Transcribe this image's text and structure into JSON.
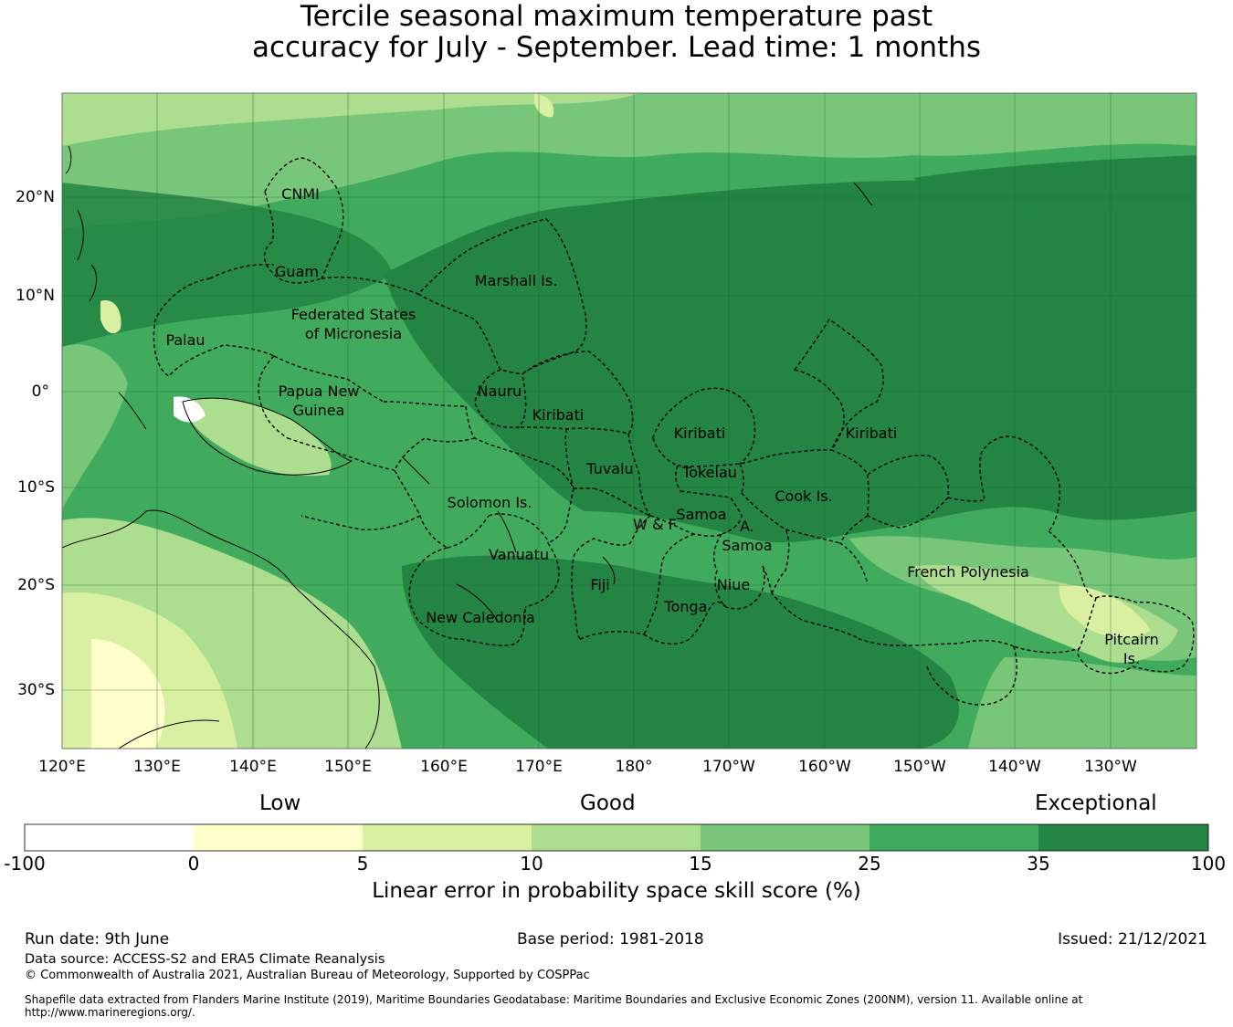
{
  "title_line1": "Tercile seasonal maximum temperature past",
  "title_line2": "accuracy for July - September. Lead time: 1 months",
  "map": {
    "lat_labels": [
      "20°N",
      "10°N",
      "0°",
      "10°S",
      "20°S",
      "30°S"
    ],
    "lon_labels": [
      "120°E",
      "130°E",
      "140°E",
      "150°E",
      "160°E",
      "170°E",
      "180°",
      "170°W",
      "160°W",
      "150°W",
      "140°W",
      "130°W"
    ],
    "regions": [
      {
        "lines": [
          "CNMI"
        ]
      },
      {
        "lines": [
          "Guam"
        ]
      },
      {
        "lines": [
          "Marshall Is."
        ]
      },
      {
        "lines": [
          "Federated States",
          "of Micronesia"
        ]
      },
      {
        "lines": [
          "Palau"
        ]
      },
      {
        "lines": [
          "Papua New",
          "Guinea"
        ]
      },
      {
        "lines": [
          "Nauru"
        ]
      },
      {
        "lines": [
          "Kiribati"
        ]
      },
      {
        "lines": [
          "Kiribati"
        ]
      },
      {
        "lines": [
          "Kiribati"
        ]
      },
      {
        "lines": [
          "Tuvalu"
        ]
      },
      {
        "lines": [
          "Tokelau"
        ]
      },
      {
        "lines": [
          "Solomon Is."
        ]
      },
      {
        "lines": [
          "Cook Is."
        ]
      },
      {
        "lines": [
          "Samoa"
        ]
      },
      {
        "lines": [
          "W & F"
        ]
      },
      {
        "lines": [
          "A."
        ]
      },
      {
        "lines": [
          "Samoa"
        ]
      },
      {
        "lines": [
          "Vanuatu"
        ]
      },
      {
        "lines": [
          "French Polynesia"
        ]
      },
      {
        "lines": [
          "Fiji"
        ]
      },
      {
        "lines": [
          "Niue"
        ]
      },
      {
        "lines": [
          "Tonga"
        ]
      },
      {
        "lines": [
          "New Caledonia"
        ]
      },
      {
        "lines": [
          "Pitcairn",
          "Is."
        ]
      }
    ]
  },
  "legend": {
    "categories": [
      "Low",
      "Good",
      "Exceptional"
    ],
    "bins": [
      {
        "from": -100,
        "to": 0,
        "color": "#ffffff"
      },
      {
        "from": 0,
        "to": 5,
        "color": "#ffffcc"
      },
      {
        "from": 5,
        "to": 10,
        "color": "#d9f0a3"
      },
      {
        "from": 10,
        "to": 15,
        "color": "#addd8e"
      },
      {
        "from": 15,
        "to": 25,
        "color": "#78c679"
      },
      {
        "from": 25,
        "to": 35,
        "color": "#41ab5d"
      },
      {
        "from": 35,
        "to": 100,
        "color": "#238443"
      }
    ],
    "ticks": [
      "-100",
      "0",
      "5",
      "10",
      "15",
      "25",
      "35",
      "100"
    ],
    "label": "Linear error in probability space skill score (%)"
  },
  "footer": {
    "run_date": "Run date: 9th June",
    "base_period": "Base period: 1981-2018",
    "issued": "Issued: 21/12/2021",
    "data_source": "Data source: ACCESS-S2 and ERA5 Climate Reanalysis",
    "copyright": "© Commonwealth of Australia 2021, Australian Bureau of Meteorology, Supported by COSPPac",
    "shapefile": "Shapefile data extracted from Flanders Marine Institute (2019), Maritime Boundaries Geodatabase: Maritime Boundaries and Exclusive Economic Zones (200NM), version 11. Available online at http://www.marineregions.org/."
  }
}
